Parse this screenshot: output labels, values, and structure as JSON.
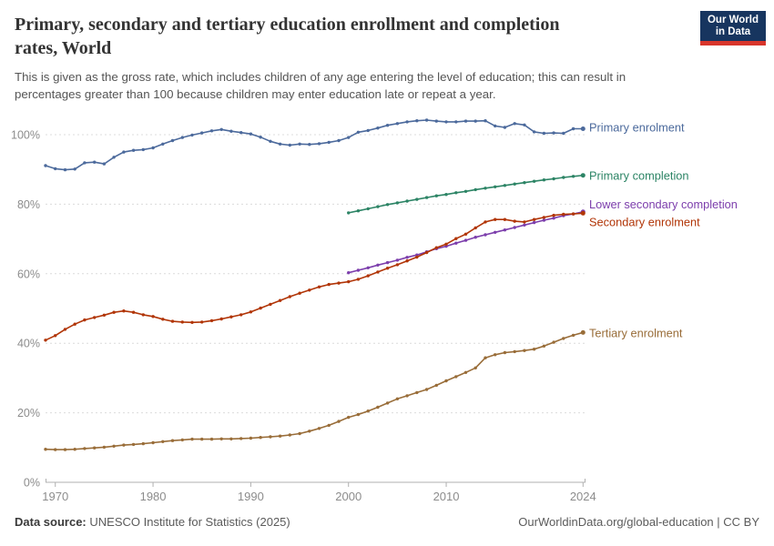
{
  "header": {
    "title_line1": "Primary, secondary and tertiary education enrollment and completion",
    "title_line2": "rates, World",
    "logo": {
      "line1": "Our World",
      "line2": "in Data",
      "navy": "#17355f",
      "red": "#d8352b"
    }
  },
  "subtitle": {
    "line1": "This is given as the gross rate, which includes children of any age entering the level of education; this can result in",
    "line2": "percentages greater than 100 because children may enter education late or repeat a year."
  },
  "footer": {
    "source_label": "Data source:",
    "source_value": "UNESCO Institute for Statistics (2025)",
    "credit": "OurWorldinData.org/global-education | CC BY"
  },
  "chart_data": {
    "type": "line",
    "title": "Primary, secondary and tertiary education enrollment and completion rates, World",
    "xlabel": "",
    "ylabel": "",
    "unit": "%",
    "ylim": [
      0,
      105
    ],
    "yticks": [
      0,
      20,
      40,
      60,
      80,
      100
    ],
    "ytick_suffix": "%",
    "xticks": [
      1970,
      1980,
      1990,
      2000,
      2010,
      2024
    ],
    "grid": "dashed-horizontal",
    "legend_position": "right-of-line-ends",
    "colors": {
      "grid": "#dcdcdc",
      "axis": "#b0b0b0",
      "tick_text": "#8c8c8c"
    },
    "series": [
      {
        "name": "Primary enrolment",
        "id": "primary-enrolment",
        "color": "#4C6A9C",
        "start_year": 1969,
        "end_year": 2024,
        "label_dy": -1,
        "values": [
          91.1,
          90.2,
          89.9,
          90.1,
          91.9,
          92.1,
          91.6,
          93.5,
          95.0,
          95.5,
          95.7,
          96.2,
          97.3,
          98.3,
          99.2,
          99.9,
          100.5,
          101.1,
          101.5,
          101.0,
          100.6,
          100.2,
          99.3,
          98.1,
          97.3,
          97.0,
          97.3,
          97.2,
          97.4,
          97.8,
          98.3,
          99.2,
          100.7,
          101.2,
          101.9,
          102.7,
          103.2,
          103.7,
          104.0,
          104.2,
          103.9,
          103.7,
          103.7,
          103.9,
          103.9,
          104.0,
          102.5,
          102.1,
          103.2,
          102.8,
          100.8,
          100.4,
          100.5,
          100.4,
          101.7,
          101.7
        ]
      },
      {
        "name": "Primary completion",
        "id": "primary-completion",
        "color": "#2C8465",
        "start_year": 2000,
        "end_year": 2024,
        "label_dy": 1,
        "values": [
          77.5,
          78.1,
          78.7,
          79.3,
          79.9,
          80.4,
          80.9,
          81.4,
          81.9,
          82.4,
          82.8,
          83.3,
          83.7,
          84.2,
          84.6,
          85.0,
          85.4,
          85.8,
          86.2,
          86.6,
          87.0,
          87.3,
          87.7,
          88.0,
          88.3
        ]
      },
      {
        "name": "Lower secondary completion",
        "id": "lower-secondary-completion",
        "color": "#7C3EAC",
        "start_year": 2000,
        "end_year": 2024,
        "label_dy": -8,
        "values": [
          60.3,
          61.0,
          61.7,
          62.5,
          63.2,
          63.9,
          64.7,
          65.4,
          66.3,
          67.2,
          67.9,
          68.8,
          69.6,
          70.5,
          71.2,
          71.9,
          72.6,
          73.3,
          74.0,
          74.7,
          75.4,
          76.0,
          76.7,
          77.2,
          77.8
        ]
      },
      {
        "name": "Secondary enrolment",
        "id": "secondary-enrolment",
        "color": "#B13507",
        "start_year": 1969,
        "end_year": 2024,
        "label_dy": 10,
        "values": [
          40.9,
          42.2,
          44.0,
          45.5,
          46.7,
          47.4,
          48.1,
          48.9,
          49.3,
          48.9,
          48.2,
          47.7,
          46.9,
          46.3,
          46.1,
          46.0,
          46.1,
          46.5,
          47.0,
          47.6,
          48.2,
          49.0,
          50.1,
          51.2,
          52.3,
          53.4,
          54.4,
          55.3,
          56.2,
          56.9,
          57.3,
          57.7,
          58.4,
          59.4,
          60.5,
          61.6,
          62.6,
          63.7,
          64.8,
          66.1,
          67.5,
          68.5,
          70.1,
          71.4,
          73.2,
          74.9,
          75.6,
          75.6,
          75.1,
          74.9,
          75.6,
          76.2,
          76.8,
          77.1,
          77.2,
          77.4
        ]
      },
      {
        "name": "Tertiary enrolment",
        "id": "tertiary-enrolment",
        "color": "#996D39",
        "start_year": 1969,
        "end_year": 2024,
        "label_dy": 1,
        "values": [
          9.5,
          9.4,
          9.4,
          9.5,
          9.7,
          9.9,
          10.1,
          10.4,
          10.7,
          10.9,
          11.1,
          11.4,
          11.7,
          12.0,
          12.2,
          12.4,
          12.4,
          12.4,
          12.5,
          12.5,
          12.6,
          12.7,
          12.9,
          13.1,
          13.3,
          13.6,
          14.0,
          14.7,
          15.5,
          16.4,
          17.5,
          18.7,
          19.5,
          20.5,
          21.6,
          22.8,
          24.0,
          24.9,
          25.8,
          26.7,
          27.9,
          29.2,
          30.4,
          31.6,
          32.9,
          35.8,
          36.7,
          37.3,
          37.6,
          37.9,
          38.3,
          39.2,
          40.3,
          41.4,
          42.3,
          43.1
        ]
      }
    ]
  }
}
